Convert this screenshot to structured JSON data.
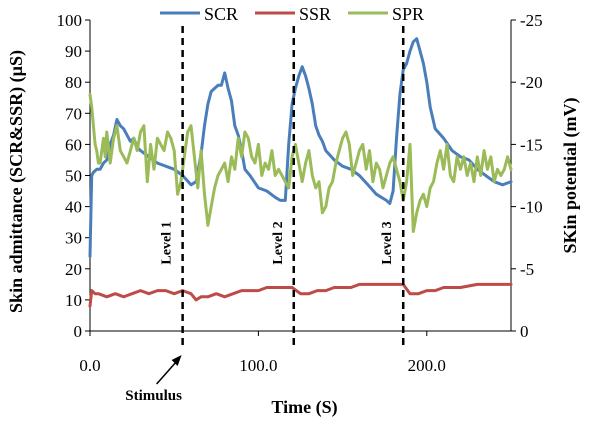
{
  "chart_data": {
    "type": "line",
    "title": "",
    "xlabel": "Time (S)",
    "ylabel_left": "Skin admittance  (SCR&SSR)  (µS)",
    "ylabel_right": "SKin potential  (mV)",
    "xlim": [
      0,
      250
    ],
    "ylim_left": [
      0,
      100
    ],
    "ylim_right": [
      0,
      -25
    ],
    "x_ticks": [
      0,
      100,
      200
    ],
    "x_tick_labels": [
      "0.0",
      "100.0",
      "200.0"
    ],
    "y_left_ticks": [
      0,
      10,
      20,
      30,
      40,
      50,
      60,
      70,
      80,
      90,
      100
    ],
    "y_left_tick_labels": [
      "0",
      "10",
      "20",
      "30",
      "40",
      "50",
      "60",
      "70",
      "80",
      "90",
      "100"
    ],
    "y_right_ticks": [
      0,
      -5,
      -10,
      -15,
      -20,
      -25
    ],
    "y_right_tick_labels": [
      "0",
      "-5",
      "-10",
      "-15",
      "-20",
      "-25"
    ],
    "grid": false,
    "legend_position": "top",
    "series": [
      {
        "name": "SCR",
        "color": "#4a7ebb",
        "axis": "left",
        "x": [
          0,
          1,
          2,
          4,
          6,
          8,
          10,
          12,
          14,
          16,
          18,
          20,
          22,
          24,
          26,
          28,
          30,
          35,
          40,
          45,
          50,
          55,
          60,
          63,
          66,
          68,
          70,
          72,
          74,
          76,
          78,
          80,
          82,
          84,
          86,
          88,
          90,
          92,
          95,
          100,
          105,
          110,
          113,
          116,
          118,
          120,
          122,
          124,
          126,
          128,
          130,
          132,
          134,
          136,
          138,
          140,
          145,
          150,
          155,
          160,
          165,
          170,
          176,
          178,
          180,
          182,
          184,
          186,
          188,
          190,
          192,
          194,
          196,
          198,
          200,
          202,
          205,
          210,
          215,
          220,
          225,
          230,
          235,
          240,
          245,
          250
        ],
        "y": [
          24,
          50,
          51,
          52,
          52,
          54,
          55,
          60,
          63,
          68,
          66,
          65,
          63,
          61,
          62,
          59,
          58,
          56,
          54,
          53,
          52,
          50,
          47,
          48,
          57,
          66,
          73,
          77,
          78,
          79,
          79,
          83,
          78,
          74,
          66,
          63,
          58,
          52,
          50,
          46,
          45,
          43,
          42,
          42,
          60,
          73,
          78,
          82,
          85,
          82,
          78,
          73,
          66,
          63,
          61,
          58,
          55,
          53,
          52,
          50,
          47,
          44,
          42,
          41,
          45,
          62,
          76,
          84,
          86,
          90,
          93,
          94,
          90,
          86,
          80,
          72,
          65,
          62,
          58,
          56,
          55,
          52,
          50,
          48,
          47,
          48
        ]
      },
      {
        "name": "SSR",
        "color": "#be4b48",
        "axis": "left",
        "x": [
          0,
          1,
          3,
          5,
          10,
          15,
          20,
          25,
          30,
          35,
          40,
          45,
          50,
          55,
          60,
          63,
          66,
          70,
          75,
          80,
          85,
          90,
          95,
          100,
          105,
          110,
          115,
          120,
          125,
          130,
          135,
          140,
          145,
          150,
          155,
          160,
          165,
          170,
          175,
          178,
          182,
          186,
          190,
          195,
          200,
          205,
          210,
          220,
          230,
          240,
          245,
          250
        ],
        "y": [
          8,
          13,
          12,
          12,
          11,
          12,
          11,
          12,
          13,
          12,
          13,
          13,
          12,
          13,
          12,
          10,
          11,
          11,
          12,
          11,
          12,
          13,
          13,
          13,
          14,
          14,
          14,
          14,
          12,
          12,
          13,
          13,
          14,
          14,
          14,
          15,
          15,
          15,
          15,
          15,
          15,
          15,
          12,
          12,
          13,
          13,
          14,
          14,
          15,
          15,
          15,
          15
        ]
      },
      {
        "name": "SPR",
        "color": "#9bbb59",
        "axis": "right",
        "x": [
          0,
          1,
          2,
          3,
          4,
          5,
          6,
          7,
          8,
          9,
          10,
          12,
          14,
          16,
          18,
          20,
          22,
          24,
          26,
          28,
          30,
          32,
          34,
          36,
          38,
          40,
          42,
          44,
          46,
          48,
          50,
          52,
          54,
          56,
          58,
          60,
          62,
          64,
          66,
          68,
          70,
          72,
          74,
          76,
          78,
          80,
          82,
          84,
          86,
          88,
          90,
          92,
          94,
          96,
          98,
          100,
          102,
          104,
          106,
          108,
          110,
          112,
          114,
          116,
          118,
          120,
          122,
          124,
          126,
          128,
          130,
          132,
          134,
          136,
          138,
          140,
          142,
          144,
          146,
          148,
          150,
          152,
          154,
          156,
          158,
          160,
          162,
          164,
          166,
          168,
          170,
          172,
          174,
          176,
          178,
          180,
          182,
          184,
          186,
          188,
          190,
          192,
          194,
          196,
          198,
          200,
          202,
          204,
          206,
          208,
          210,
          212,
          214,
          216,
          218,
          220,
          222,
          224,
          226,
          228,
          230,
          232,
          234,
          236,
          238,
          240,
          242,
          244,
          246,
          248,
          250
        ],
        "y": [
          -19,
          -18,
          -16.5,
          -15,
          -14.5,
          -13.5,
          -13.5,
          -14.5,
          -15.5,
          -14,
          -16,
          -13.5,
          -15.5,
          -16.5,
          -14.5,
          -14,
          -13.5,
          -14.5,
          -15.5,
          -14.5,
          -16,
          -16.5,
          -12,
          -15,
          -13,
          -15.5,
          -15,
          -14.5,
          -16,
          -15.5,
          -14.5,
          -11,
          -12,
          -14,
          -16,
          -16.5,
          -14,
          -11.5,
          -14.5,
          -11,
          -8.5,
          -10,
          -11.5,
          -12.5,
          -13,
          -13.5,
          -12,
          -14,
          -13,
          -15.5,
          -14,
          -16,
          -15.5,
          -14,
          -13.5,
          -15,
          -12.5,
          -13.5,
          -13,
          -14.5,
          -12.5,
          -13,
          -12.5,
          -12,
          -11.5,
          -14,
          -15,
          -13.5,
          -12,
          -13.5,
          -14.5,
          -12.5,
          -11.5,
          -12,
          -9.5,
          -10,
          -11.5,
          -12,
          -13.5,
          -14.5,
          -15.5,
          -16,
          -15,
          -12.5,
          -13.5,
          -14.5,
          -15,
          -13,
          -14.5,
          -12,
          -13.5,
          -13,
          -11.5,
          -12.5,
          -13.5,
          -14,
          -13,
          -12,
          -10.5,
          -12,
          -15,
          -8,
          -9.5,
          -10.5,
          -11,
          -10,
          -11.5,
          -12,
          -13.5,
          -14.5,
          -13,
          -15,
          -12.5,
          -12,
          -14,
          -13,
          -14,
          -12.5,
          -13.5,
          -12,
          -14,
          -12.5,
          -14.5,
          -13,
          -14,
          -12,
          -13,
          -12.5,
          -13,
          -14,
          -13
        ]
      }
    ],
    "annotations": {
      "levels": [
        {
          "x": 55,
          "label": "Level 1"
        },
        {
          "x": 121,
          "label": "Level 2"
        },
        {
          "x": 186,
          "label": "Level 3"
        }
      ],
      "stimulus": {
        "label": "Stimulus",
        "x": 55
      }
    }
  }
}
